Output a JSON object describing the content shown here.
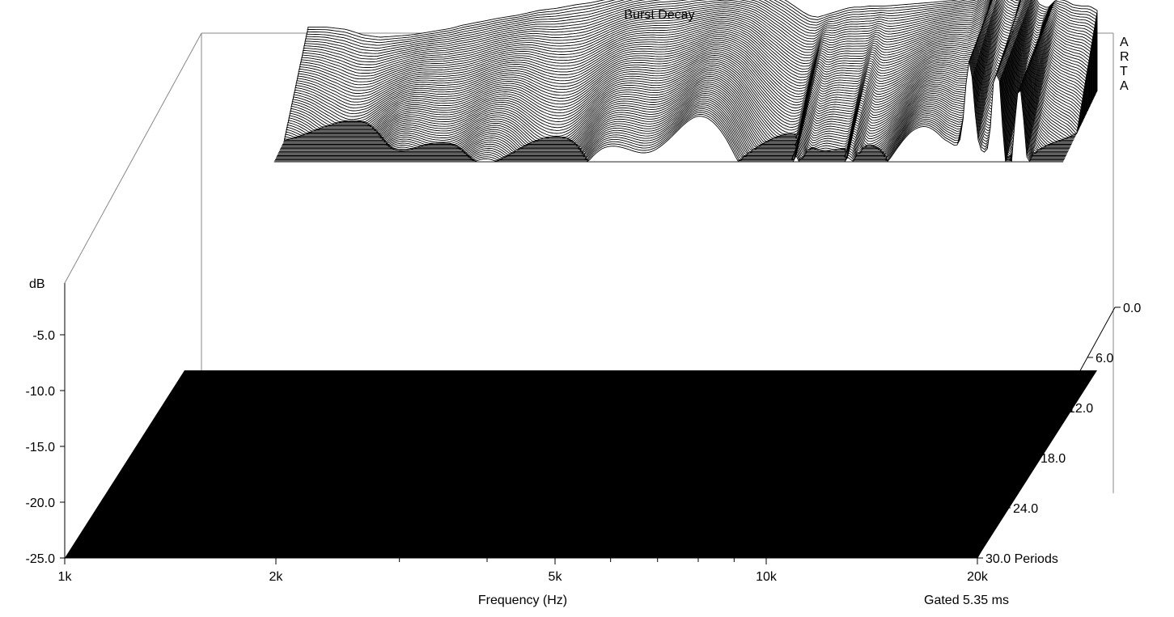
{
  "chart_data": {
    "type": "waterfall",
    "title": "Burst Decay",
    "xlabel": "Frequency (Hz)",
    "ylabel": "dB",
    "zlabel": "Periods",
    "brand": "ARTA",
    "gate_note": "Gated 5.35 ms",
    "x_scale": "log",
    "xlim": [
      1000,
      20000
    ],
    "ylim": [
      -25,
      0
    ],
    "zlim": [
      0,
      30
    ],
    "x_ticks": [
      {
        "value": 1000,
        "label": "1k"
      },
      {
        "value": 2000,
        "label": "2k"
      },
      {
        "value": 5000,
        "label": "5k"
      },
      {
        "value": 10000,
        "label": "10k"
      },
      {
        "value": 20000,
        "label": "20k"
      }
    ],
    "x_minor_ticks": [
      3000,
      4000,
      6000,
      7000,
      8000,
      9000
    ],
    "y_ticks": [
      {
        "value": -5,
        "label": "-5.0"
      },
      {
        "value": -10,
        "label": "-10.0"
      },
      {
        "value": -15,
        "label": "-15.0"
      },
      {
        "value": -20,
        "label": "-20.0"
      },
      {
        "value": -25,
        "label": "-25.0"
      }
    ],
    "z_ticks": [
      {
        "value": 0,
        "label": "0.0"
      },
      {
        "value": 6,
        "label": "6.0"
      },
      {
        "value": 12,
        "label": "12.0"
      },
      {
        "value": 18,
        "label": "18.0"
      },
      {
        "value": 24,
        "label": "24.0"
      },
      {
        "value": 30,
        "label": "30.0 Periods"
      }
    ],
    "series": [
      {
        "x": [
          1000,
          1020,
          1060,
          1100,
          1200,
          1300,
          1400,
          1500,
          1600,
          1700,
          1800,
          1900,
          2000,
          2100,
          2200,
          2300,
          2400,
          2500,
          2600,
          2700,
          2800,
          3000,
          3200,
          3400,
          3600,
          3800,
          4000,
          4200,
          4400,
          4600,
          4800,
          5000,
          5200,
          5400,
          5600,
          5800,
          6000,
          6200,
          6400,
          6600,
          6800,
          7000,
          7200,
          7400,
          7600,
          7800,
          8000,
          8200,
          8400,
          8600,
          8800,
          9000,
          9200,
          9500,
          10000,
          10500,
          11000,
          11500,
          12000,
          12500,
          13000,
          13500,
          14000,
          14500,
          15000,
          15500,
          16000,
          16500,
          17000,
          17500,
          18000,
          18500,
          19000,
          19500,
          20000
        ],
        "values": [
          -3.8,
          -2.9,
          -2.2,
          -1.6,
          -0.8,
          -0.3,
          0.0,
          0.1,
          0.1,
          -0.1,
          -0.6,
          -0.8,
          -0.7,
          -0.6,
          -0.4,
          -0.2,
          0.0,
          0.3,
          0.5,
          0.7,
          0.9,
          1.2,
          1.6,
          1.8,
          2.1,
          2.3,
          2.6,
          2.9,
          3.2,
          3.4,
          3.6,
          3.7,
          3.8,
          3.9,
          3.9,
          3.9,
          3.9,
          3.8,
          3.7,
          3.6,
          3.3,
          2.9,
          2.5,
          2.0,
          1.5,
          1.1,
          1.0,
          1.2,
          1.4,
          1.6,
          1.8,
          1.9,
          1.9,
          2.0,
          2.0,
          2.1,
          2.2,
          2.3,
          2.4,
          2.5,
          2.7,
          2.9,
          3.7,
          4.8,
          5.6,
          5.3,
          3.9,
          2.2,
          1.8,
          2.6,
          2.5,
          2.1,
          2.0,
          2.0,
          1.6
        ]
      }
    ],
    "resonances": [
      {
        "f": 8300,
        "t": 5
      },
      {
        "f": 9900,
        "t": 4
      },
      {
        "f": 14700,
        "t": 12
      },
      {
        "f": 16100,
        "t": 17
      },
      {
        "f": 17300,
        "t": 14
      }
    ]
  }
}
